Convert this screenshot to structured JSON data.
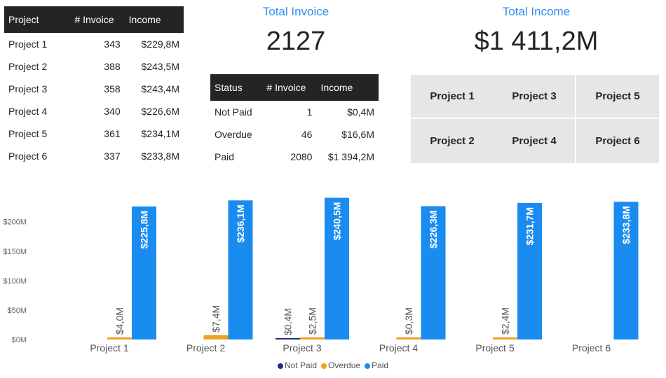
{
  "projects_table": {
    "headers": [
      "Project",
      "# Invoice",
      "Income"
    ],
    "rows": [
      [
        "Project 1",
        "343",
        "$229,8M"
      ],
      [
        "Project 2",
        "388",
        "$243,5M"
      ],
      [
        "Project 3",
        "358",
        "$243,4M"
      ],
      [
        "Project 4",
        "340",
        "$226,6M"
      ],
      [
        "Project 5",
        "361",
        "$234,1M"
      ],
      [
        "Project 6",
        "337",
        "$233,8M"
      ]
    ]
  },
  "status_table": {
    "headers": [
      "Status",
      "# Invoice",
      "Income"
    ],
    "rows": [
      [
        "Not Paid",
        "1",
        "$0,4M"
      ],
      [
        "Overdue",
        "46",
        "$16,6M"
      ],
      [
        "Paid",
        "2080",
        "$1 394,2M"
      ]
    ]
  },
  "kpis": {
    "invoice_title": "Total Invoice",
    "invoice_value": "2127",
    "income_title": "Total Income",
    "income_value": "$1 411,2M"
  },
  "slicer": {
    "items": [
      "Project 1",
      "Project 3",
      "Project 5",
      "Project 2",
      "Project 4",
      "Project 6"
    ]
  },
  "colors": {
    "not_paid": "#1f2a8a",
    "overdue": "#f0a020",
    "paid": "#1a8cf0",
    "header_bg": "#252423",
    "accent": "#2d8ff0"
  },
  "chart_data": {
    "type": "bar",
    "categories": [
      "Project 1",
      "Project 2",
      "Project 3",
      "Project 4",
      "Project 5",
      "Project 6"
    ],
    "series": [
      {
        "name": "Not Paid",
        "values": [
          null,
          null,
          0.4,
          null,
          null,
          null
        ],
        "labels": [
          "",
          "",
          "$0,4M",
          "",
          "",
          ""
        ]
      },
      {
        "name": "Overdue",
        "values": [
          4.0,
          7.4,
          2.5,
          0.3,
          2.4,
          null
        ],
        "labels": [
          "$4,0M",
          "$7,4M",
          "$2,5M",
          "$0,3M",
          "$2,4M",
          ""
        ]
      },
      {
        "name": "Paid",
        "values": [
          225.8,
          236.1,
          240.5,
          226.3,
          231.7,
          233.8
        ],
        "labels": [
          "$225,8M",
          "$236,1M",
          "$240,5M",
          "$226,3M",
          "$231,7M",
          "$233,8M"
        ]
      }
    ],
    "y_ticks": [
      "$0M",
      "$50M",
      "$100M",
      "$150M",
      "$200M"
    ],
    "ylim": [
      0,
      240
    ],
    "legend": "bottom-center"
  }
}
